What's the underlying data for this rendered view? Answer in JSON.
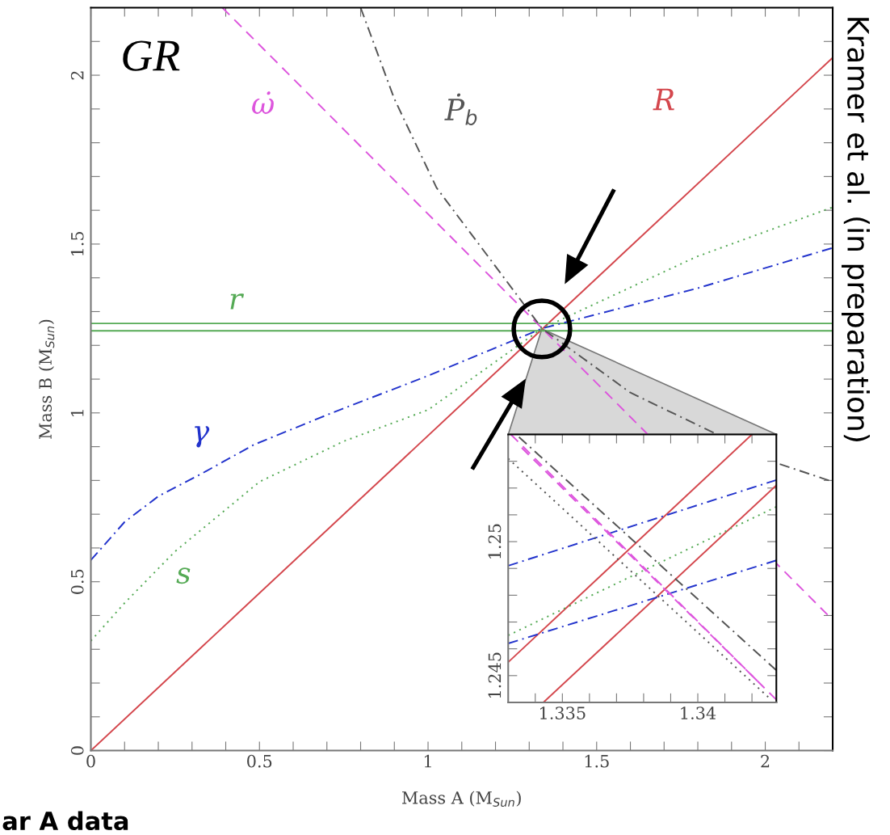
{
  "chart_data": [
    {
      "type": "line",
      "xlabel": "Mass A (M$_{Sun}$)",
      "ylabel": "Mass B (M$_{Sun}$)",
      "xlim": [
        0,
        2.2
      ],
      "ylim": [
        0,
        2.2
      ],
      "xticks": [
        0,
        {
          "value": 0.1,
          "label": null
        },
        {
          "value": 0.2,
          "label": null
        },
        {
          "value": 0.3,
          "label": null
        },
        {
          "value": 0.4,
          "label": null
        },
        0.5,
        {
          "value": 0.6,
          "label": null
        },
        {
          "value": 0.7,
          "label": null
        },
        {
          "value": 0.8,
          "label": null
        },
        {
          "value": 0.9,
          "label": null
        },
        1,
        {
          "value": 1.1,
          "label": null
        },
        {
          "value": 1.2,
          "label": null
        },
        {
          "value": 1.3,
          "label": null
        },
        {
          "value": 1.4,
          "label": null
        },
        1.5,
        {
          "value": 1.6,
          "label": null
        },
        {
          "value": 1.7,
          "label": null
        },
        {
          "value": 1.8,
          "label": null
        },
        {
          "value": 1.9,
          "label": null
        },
        2,
        {
          "value": 2.1,
          "label": null
        }
      ],
      "yticks": [
        0,
        {
          "value": 0.1,
          "label": null
        },
        {
          "value": 0.2,
          "label": null
        },
        {
          "value": 0.3,
          "label": null
        },
        {
          "value": 0.4,
          "label": null
        },
        0.5,
        {
          "value": 0.6,
          "label": null
        },
        {
          "value": 0.7,
          "label": null
        },
        {
          "value": 0.8,
          "label": null
        },
        {
          "value": 0.9,
          "label": null
        },
        1,
        {
          "value": 1.1,
          "label": null
        },
        {
          "value": 1.2,
          "label": null
        },
        {
          "value": 1.3,
          "label": null
        },
        {
          "value": 1.4,
          "label": null
        },
        1.5,
        {
          "value": 1.6,
          "label": null
        },
        {
          "value": 1.7,
          "label": null
        },
        {
          "value": 1.8,
          "label": null
        },
        {
          "value": 1.9,
          "label": null
        },
        2,
        {
          "value": 2.1,
          "label": null
        }
      ],
      "grid": false,
      "legend": false,
      "series": [
        {
          "color": "#d4474d",
          "line_style": "solid",
          "x": [
            0,
            2.2
          ],
          "values": [
            0,
            2.052
          ]
        },
        {
          "color": "#55aa55",
          "line_style": "solid",
          "x": [
            0,
            2.2
          ],
          "values": [
            1.265,
            1.265
          ]
        },
        {
          "color": "#55aa55",
          "line_style": "solid",
          "x": [
            0,
            2.2
          ],
          "values": [
            1.243,
            1.243
          ]
        },
        {
          "color": "#dd55dd",
          "line_style": "dashed",
          "x": [
            0.39,
            2.185
          ],
          "values": [
            2.2,
            0.402
          ]
        },
        {
          "color": "#555555",
          "line_style": "dashdot",
          "x": [
            0.8,
            0.9,
            1.025,
            1.338,
            1.6,
            2.035,
            2.189
          ],
          "values": [
            2.2,
            1.93,
            1.667,
            1.25,
            1.06,
            0.851,
            0.8
          ]
        },
        {
          "color": "#2233cc",
          "line_style": "dashdot",
          "x": [
            0,
            0.1,
            0.2,
            0.33,
            0.484,
            0.715,
            1.0,
            1.338,
            1.795,
            2.197
          ],
          "values": [
            0.564,
            0.677,
            0.753,
            0.821,
            0.906,
            1.0,
            1.11,
            1.25,
            1.368,
            1.488
          ]
        },
        {
          "color": "#55aa55",
          "line_style": "dotted",
          "x": [
            0,
            0.1,
            0.25,
            0.5,
            0.75,
            1.0,
            1.338,
            1.795,
            2.197
          ],
          "values": [
            0.325,
            0.437,
            0.59,
            0.796,
            0.916,
            1.009,
            1.25,
            1.462,
            1.608
          ]
        }
      ],
      "annotations": [
        "GR",
        "Kramer et al. (in preparation)",
        "ar A data",
        "ω̇",
        "Ṗ$_{b}$",
        "R",
        "r",
        "γ",
        "s"
      ]
    },
    {
      "type": "line",
      "xlim": [
        1.333,
        1.3429
      ],
      "ylim": [
        1.244,
        1.254
      ],
      "xticks": [
        {
          "value": 1.334,
          "label": null
        },
        1.335,
        {
          "value": 1.336,
          "label": null
        },
        {
          "value": 1.337,
          "label": null
        },
        {
          "value": 1.338,
          "label": null
        },
        {
          "value": 1.339,
          "label": null
        },
        1.34,
        {
          "value": 1.341,
          "label": null
        },
        {
          "value": 1.342,
          "label": null
        }
      ],
      "yticks": [
        {
          "value": 1.244,
          "label": null
        },
        1.245,
        {
          "value": 1.246,
          "label": null
        },
        {
          "value": 1.247,
          "label": null
        },
        {
          "value": 1.248,
          "label": null
        },
        {
          "value": 1.249,
          "label": null
        },
        1.25,
        {
          "value": 1.251,
          "label": null
        },
        {
          "value": 1.252,
          "label": null
        },
        {
          "value": 1.253,
          "label": null
        }
      ],
      "grid": false,
      "legend": false,
      "series": [
        {
          "color": "#d4474d",
          "line_style": "solid",
          "x": [
            1.333,
            1.342
          ],
          "values": [
            1.2455,
            1.254
          ]
        },
        {
          "color": "#d4474d",
          "line_style": "solid",
          "x": [
            1.3343,
            1.3429
          ],
          "values": [
            1.244,
            1.2521
          ]
        },
        {
          "color": "#2233cc",
          "line_style": "dashdot",
          "x": [
            1.333,
            1.3429
          ],
          "values": [
            1.2491,
            1.2523
          ]
        },
        {
          "color": "#2233cc",
          "line_style": "dashdot",
          "x": [
            1.333,
            1.3429
          ],
          "values": [
            1.2462,
            1.2493
          ]
        },
        {
          "color": "#55aa55",
          "line_style": "dotted",
          "x": [
            1.333,
            1.3429
          ],
          "values": [
            1.2465,
            1.2513
          ]
        },
        {
          "color": "#dd55dd",
          "line_style": "dashed",
          "x": [
            1.3331,
            1.3422
          ],
          "values": [
            1.254,
            1.2448
          ]
        },
        {
          "color": "#dd55dd",
          "line_style": "dashed",
          "x": [
            1.3335,
            1.3429
          ],
          "values": [
            1.2535,
            1.2441
          ]
        },
        {
          "color": "#555555",
          "line_style": "dashdot",
          "x": [
            1.3334,
            1.3429
          ],
          "values": [
            1.2539,
            1.2452
          ]
        },
        {
          "color": "#555555",
          "line_style": "dotted",
          "x": [
            1.333,
            1.3426
          ],
          "values": [
            1.2531,
            1.2442
          ]
        }
      ]
    }
  ]
}
